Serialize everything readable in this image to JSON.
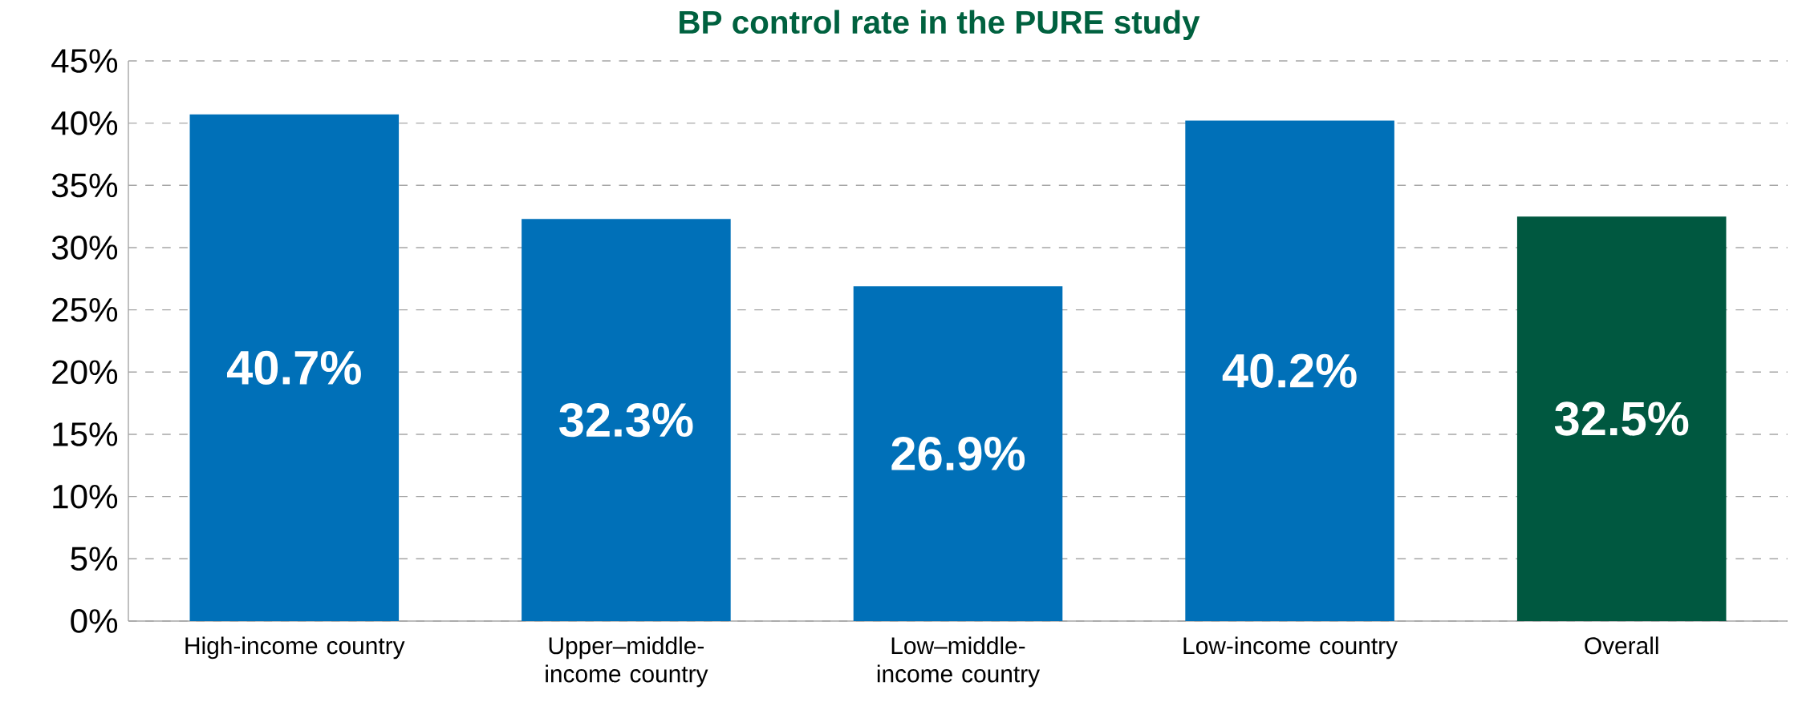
{
  "chart_data": {
    "type": "bar",
    "title": "BP control rate in the PURE study",
    "categories": [
      "High-income country",
      "Upper–middle-income country",
      "Low–middle-income country",
      "Low-income country",
      "Overall"
    ],
    "values": [
      40.7,
      32.3,
      26.9,
      40.2,
      32.5
    ],
    "colors": [
      "#0070b8",
      "#0070b8",
      "#0070b8",
      "#0070b8",
      "#005840"
    ],
    "value_labels": [
      "40.7%",
      "32.3%",
      "26.9%",
      "40.2%",
      "32.5%"
    ],
    "ylim": [
      0,
      45
    ],
    "yticks": [
      {
        "value": 0,
        "label": "0%"
      },
      {
        "value": 5,
        "label": "5%"
      },
      {
        "value": 10,
        "label": "10%"
      },
      {
        "value": 15,
        "label": "15%"
      },
      {
        "value": 20,
        "label": "20%"
      },
      {
        "value": 25,
        "label": "25%"
      },
      {
        "value": 30,
        "label": "30%"
      },
      {
        "value": 35,
        "label": "35%"
      },
      {
        "value": 40,
        "label": "40%"
      },
      {
        "value": 45,
        "label": "45%"
      }
    ],
    "grid": "y"
  }
}
